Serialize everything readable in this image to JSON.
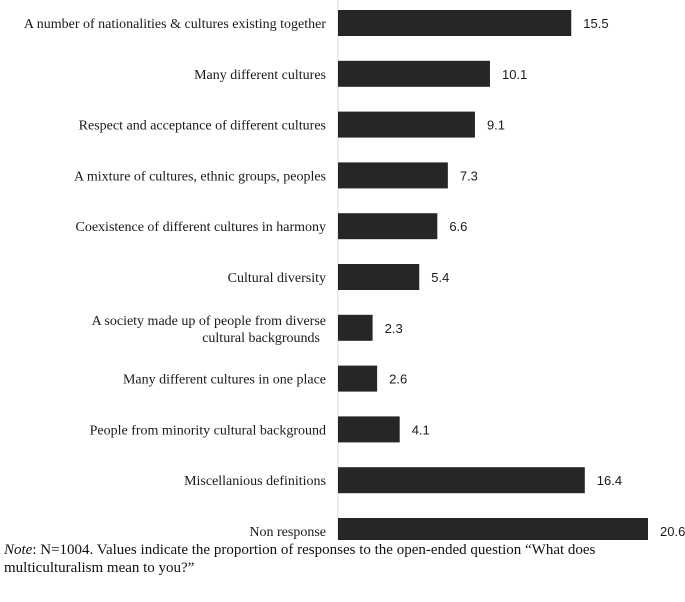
{
  "chart_data": {
    "type": "bar",
    "orientation": "horizontal",
    "categories": [
      "A number of nationalities & cultures existing together",
      "Many different cultures",
      "Respect and acceptance of different cultures",
      "A mixture of cultures, ethnic groups, peoples",
      "Coexistence of different cultures in harmony",
      "Cultural diversity",
      "A society made up of people from diverse cultural backgrounds",
      "Many different cultures in one place",
      "People from minority cultural background",
      "Miscellanious definitions",
      "Non response"
    ],
    "values": [
      15.5,
      10.1,
      9.1,
      7.3,
      6.6,
      5.4,
      2.3,
      2.6,
      4.1,
      16.4,
      20.6
    ],
    "value_labels": [
      "15.5",
      "10.1",
      "9.1",
      "7.3",
      "6.6",
      "5.4",
      "2.3",
      "2.6",
      "4.1",
      "16.4",
      "20.6"
    ],
    "xlim": [
      0,
      20.6
    ],
    "grid": false,
    "bar_color": "#262626"
  },
  "note": {
    "label": "Note",
    "text": ": N=1004. Values indicate the proportion of responses to the open-ended question “What does multiculturalism mean to you?”"
  }
}
